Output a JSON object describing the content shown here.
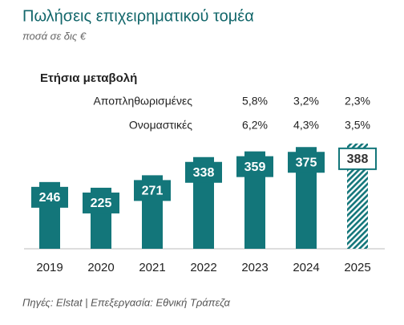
{
  "chart_data": {
    "type": "bar",
    "title": "Πωλήσεις επιχειρηματικού τομέα",
    "subtitle": "ποσά σε δις €",
    "categories": [
      "2019",
      "2020",
      "2021",
      "2022",
      "2023",
      "2024",
      "2025"
    ],
    "values": [
      246,
      225,
      271,
      338,
      359,
      375,
      388
    ],
    "color": "#13767a",
    "annual_change": {
      "title": "Ετήσια μεταβολή",
      "rows": [
        {
          "name": "Αποπληθωρισμένες",
          "cells": [
            "5,8%",
            "3,2%",
            "2,3%"
          ]
        },
        {
          "name": "Ονομαστικές",
          "cells": [
            "6,2%",
            "4,3%",
            "3,5%"
          ]
        }
      ]
    },
    "source": "Πηγές: Elstat | Επεξεργασία: Εθνική Τράπεζα"
  }
}
